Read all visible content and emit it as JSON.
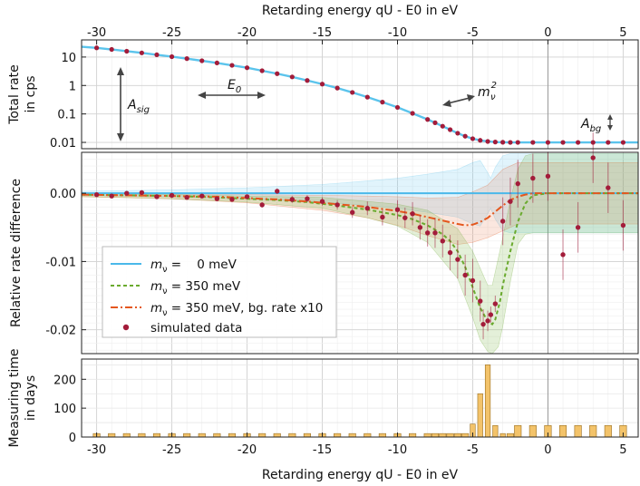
{
  "chart_data": [
    {
      "panel": "total-rate",
      "type": "line",
      "top_xlabel": "Retarding energy qU - E0 in eV",
      "ylabel": [
        "Total rate",
        "in cps"
      ],
      "yscale": "log",
      "ylim": [
        0.006,
        40
      ],
      "xlim": [
        -31,
        6
      ],
      "yticks": [
        "10",
        "1",
        "0.1",
        "0.01"
      ],
      "ytick_values": [
        10,
        1,
        0.1,
        0.01
      ],
      "xticks": [
        "-30",
        "-25",
        "-20",
        "-15",
        "-10",
        "-5",
        "0",
        "5"
      ],
      "xtick_values": [
        -30,
        -25,
        -20,
        -15,
        -10,
        -5,
        0,
        5
      ],
      "annotations": {
        "a_sig": {
          "main": "A",
          "sub": "sig"
        },
        "e0": {
          "main": "E",
          "sub": "0"
        },
        "m_nu_sq": {
          "main": "m",
          "sub": "ν",
          "sup": "2"
        },
        "a_bg": {
          "main": "A",
          "sub": "bg"
        }
      },
      "line_color": "#5bc4ec",
      "point_color": "#a31c3a",
      "x": [
        -31,
        -30,
        -29,
        -28,
        -27,
        -26,
        -25,
        -24,
        -23,
        -22,
        -21,
        -20,
        -19,
        -18,
        -17,
        -16,
        -15,
        -14,
        -13,
        -12,
        -11,
        -10,
        -9,
        -8,
        -7.5,
        -7,
        -6.5,
        -6,
        -5.5,
        -5,
        -4.5,
        -4,
        -3.5,
        -3,
        -2.5,
        -2,
        -1.5,
        -1,
        0,
        1,
        2,
        3,
        4,
        5,
        6
      ],
      "y": [
        23,
        21,
        18.5,
        16,
        14,
        12,
        10.3,
        8.8,
        7.4,
        6.2,
        5.1,
        4.2,
        3.3,
        2.6,
        2.0,
        1.5,
        1.12,
        0.81,
        0.57,
        0.39,
        0.26,
        0.17,
        0.105,
        0.064,
        0.049,
        0.037,
        0.028,
        0.021,
        0.0165,
        0.0135,
        0.0118,
        0.0108,
        0.0103,
        0.0101,
        0.01,
        0.01,
        0.01,
        0.01,
        0.01,
        0.01,
        0.01,
        0.01,
        0.01,
        0.01,
        0.01
      ],
      "points_x": [
        -30,
        -29,
        -28,
        -27,
        -26,
        -25,
        -24,
        -23,
        -22,
        -21,
        -20,
        -19,
        -18,
        -17,
        -16,
        -15,
        -14,
        -13,
        -12,
        -11,
        -10,
        -9,
        -8,
        -7.5,
        -7,
        -6.5,
        -6,
        -5.5,
        -5,
        -4.5,
        -4,
        -3.5,
        -3,
        -2.5,
        -2,
        -1,
        0,
        1,
        2,
        3,
        4,
        5
      ],
      "points_y": [
        21,
        18.5,
        16,
        14,
        12,
        10.3,
        8.8,
        7.4,
        6.2,
        5.1,
        4.2,
        3.3,
        2.6,
        2.0,
        1.5,
        1.12,
        0.81,
        0.57,
        0.39,
        0.26,
        0.17,
        0.105,
        0.064,
        0.049,
        0.037,
        0.028,
        0.021,
        0.0165,
        0.0135,
        0.0118,
        0.0108,
        0.0103,
        0.0101,
        0.01,
        0.01,
        0.01,
        0.01,
        0.01,
        0.01,
        0.01,
        0.01,
        0.01
      ]
    },
    {
      "panel": "relative-difference",
      "type": "line",
      "ylabel": [
        "Relative rate difference"
      ],
      "ylim": [
        -0.0235,
        0.006
      ],
      "xlim": [
        -31,
        6
      ],
      "yticks": [
        "0.00",
        "-0.01",
        "-0.02"
      ],
      "ytick_values": [
        0,
        -0.01,
        -0.02
      ],
      "legend_position": "lower-left",
      "series": [
        {
          "name": "mν =    0 meV",
          "label_main": "m",
          "label_sub": "ν",
          "label_rest": " =    0 meV",
          "color": "#4ab8ea",
          "style": "solid",
          "x": [
            -31,
            6
          ],
          "y": [
            0,
            0
          ]
        },
        {
          "name": "mν = 350 meV",
          "label_main": "m",
          "label_sub": "ν",
          "label_rest": " = 350 meV",
          "color": "#6aaa2e",
          "style": "dashed",
          "x": [
            -31,
            -28,
            -25,
            -22,
            -20,
            -18,
            -16,
            -14,
            -12,
            -10,
            -9,
            -8,
            -7,
            -6.5,
            -6,
            -5.5,
            -5,
            -4.5,
            -4,
            -3.7,
            -3.5,
            -3.2,
            -3,
            -2.5,
            -2,
            -1.5,
            -1,
            0,
            6
          ],
          "y": [
            -0.0002,
            -0.0003,
            -0.0004,
            -0.0006,
            -0.0008,
            -0.001,
            -0.0013,
            -0.0018,
            -0.0024,
            -0.0032,
            -0.0038,
            -0.0047,
            -0.006,
            -0.007,
            -0.0085,
            -0.0108,
            -0.0138,
            -0.0168,
            -0.0188,
            -0.0192,
            -0.0185,
            -0.016,
            -0.0135,
            -0.0085,
            -0.0042,
            -0.0015,
            -0.0003,
            0,
            0
          ]
        },
        {
          "name": "mν = 350 meV, bg. rate x10",
          "label_main": "m",
          "label_sub": "ν",
          "label_rest": " = 350 meV, bg. rate x10",
          "color": "#e4571e",
          "style": "dashdot",
          "x": [
            -31,
            -28,
            -25,
            -22,
            -20,
            -18,
            -16,
            -14,
            -12,
            -10,
            -9,
            -8,
            -7,
            -6,
            -5.5,
            -5,
            -4.5,
            -4,
            -3.5,
            -3,
            -2.5,
            -2,
            -1.5,
            -1,
            0,
            6
          ],
          "y": [
            -0.0002,
            -0.0003,
            -0.0004,
            -0.0005,
            -0.0007,
            -0.0009,
            -0.0012,
            -0.0016,
            -0.002,
            -0.0026,
            -0.003,
            -0.0035,
            -0.004,
            -0.0045,
            -0.0047,
            -0.0046,
            -0.0042,
            -0.0036,
            -0.0027,
            -0.0018,
            -0.001,
            -0.0005,
            -0.0002,
            0,
            0,
            0
          ]
        },
        {
          "name": "simulated data",
          "color": "#a31c3a",
          "style": "points",
          "x": [
            -30,
            -29,
            -28,
            -27,
            -26,
            -25,
            -24,
            -23,
            -22,
            -21,
            -20,
            -19,
            -18,
            -17,
            -16,
            -15,
            -14,
            -13,
            -12,
            -11,
            -10,
            -9.5,
            -9,
            -8.5,
            -8,
            -7.5,
            -7,
            -6.5,
            -6,
            -5.5,
            -5,
            -4.5,
            -4.3,
            -4,
            -3.8,
            -3.5,
            -3,
            -2.5,
            -2,
            -1,
            0,
            1,
            2,
            3,
            4,
            5
          ],
          "y": [
            -0.0002,
            -0.0004,
            0.0,
            0.0001,
            -0.0005,
            -0.0003,
            -0.0006,
            -0.0004,
            -0.0008,
            -0.0009,
            -0.0005,
            -0.0017,
            0.0003,
            -0.0009,
            -0.0008,
            -0.0012,
            -0.0017,
            -0.0028,
            -0.0022,
            -0.0035,
            -0.0024,
            -0.0036,
            -0.003,
            -0.005,
            -0.0058,
            -0.0058,
            -0.007,
            -0.0087,
            -0.0097,
            -0.012,
            -0.0128,
            -0.0158,
            -0.0192,
            -0.0187,
            -0.0178,
            -0.0162,
            -0.0041,
            -0.0012,
            0.0014,
            0.0022,
            0.0025,
            -0.009,
            -0.005,
            0.0052,
            0.0008,
            -0.0047
          ],
          "err": [
            0.0002,
            0.0002,
            0.0002,
            0.0002,
            0.0002,
            0.0002,
            0.0002,
            0.0003,
            0.0003,
            0.0003,
            0.0003,
            0.0004,
            0.0004,
            0.0005,
            0.0005,
            0.0006,
            0.0007,
            0.0008,
            0.001,
            0.0012,
            0.0014,
            0.0015,
            0.0017,
            0.0018,
            0.002,
            0.0022,
            0.0024,
            0.0026,
            0.0028,
            0.003,
            0.0032,
            0.003,
            0.0022,
            0.0015,
            0.0012,
            0.0012,
            0.0035,
            0.0035,
            0.0035,
            0.0036,
            0.0036,
            0.0037,
            0.0037,
            0.0037,
            0.0037,
            0.0037
          ]
        }
      ],
      "bands": [
        {
          "color": "#5bc4ec",
          "opacity": 0.18,
          "x": [
            -31,
            -25,
            -20,
            -15,
            -12,
            -10,
            -8,
            -6,
            -5,
            -4.5,
            -4,
            -3.8,
            -3.5,
            -3,
            -2.5,
            -2,
            6
          ],
          "upper": [
            0.0003,
            0.0005,
            0.0008,
            0.0013,
            0.0018,
            0.0022,
            0.0028,
            0.0035,
            0.0045,
            0.0048,
            0.003,
            0.0022,
            0.0038,
            0.0055,
            0.0058,
            0.0058,
            0.0058
          ],
          "lower": [
            -0.0003,
            -0.0005,
            -0.0008,
            -0.0013,
            -0.0018,
            -0.0022,
            -0.0028,
            -0.0035,
            -0.0045,
            -0.0048,
            -0.003,
            -0.0022,
            -0.0038,
            -0.0055,
            -0.0058,
            -0.0058,
            -0.0058
          ]
        },
        {
          "color": "#e4571e",
          "opacity": 0.14,
          "x": [
            -31,
            -25,
            -20,
            -15,
            -12,
            -10,
            -8,
            -6,
            -5,
            -4,
            -3,
            -2,
            -1,
            6
          ],
          "upper": [
            0.0,
            -0.0001,
            -0.0002,
            -0.0003,
            -0.0004,
            -0.0005,
            -0.0007,
            -0.0006,
            0.0002,
            0.0012,
            0.0035,
            0.0045,
            0.0045,
            0.0045
          ],
          "lower": [
            -0.0005,
            -0.0008,
            -0.0014,
            -0.0025,
            -0.0036,
            -0.0047,
            -0.0062,
            -0.0075,
            -0.0072,
            -0.0065,
            -0.0055,
            -0.0045,
            -0.0045,
            -0.0045
          ]
        },
        {
          "color": "#6aaa2e",
          "opacity": 0.18,
          "x": [
            -31,
            -25,
            -20,
            -15,
            -12,
            -10,
            -8,
            -6,
            -5,
            -4.5,
            -4,
            -3.7,
            -3.3,
            -3,
            -2.5,
            -2,
            -1.5,
            -1,
            6
          ],
          "upper": [
            0.0,
            -0.0002,
            -0.0004,
            -0.0006,
            -0.0012,
            -0.0016,
            -0.0025,
            -0.0052,
            -0.0085,
            -0.011,
            -0.0135,
            -0.0135,
            -0.0095,
            -0.0065,
            -0.001,
            0.0035,
            0.0055,
            0.0058,
            0.0058
          ],
          "lower": [
            -0.0005,
            -0.0008,
            -0.0013,
            -0.0022,
            -0.0036,
            -0.0048,
            -0.0072,
            -0.0125,
            -0.0182,
            -0.0215,
            -0.0232,
            -0.0235,
            -0.0225,
            -0.0195,
            -0.013,
            -0.0075,
            -0.006,
            -0.0058,
            -0.0058
          ]
        }
      ]
    },
    {
      "panel": "measuring-time",
      "type": "bar",
      "ylabel": [
        "Measuring time",
        "in days"
      ],
      "xlabel": "Retarding energy qU - E0 in eV",
      "ylim": [
        0,
        270
      ],
      "xlim": [
        -31,
        6
      ],
      "yticks": [
        "200",
        "100",
        "0"
      ],
      "ytick_values": [
        200,
        100,
        0
      ],
      "xticks": [
        "-30",
        "-25",
        "-20",
        "-15",
        "-10",
        "-5",
        "0",
        "5"
      ],
      "xtick_values": [
        -30,
        -25,
        -20,
        -15,
        -10,
        -5,
        0,
        5
      ],
      "bar_color": "#f3c36a",
      "bar_edge": "#9a6e20",
      "x": [
        -30,
        -29,
        -28,
        -27,
        -26,
        -25,
        -24,
        -23,
        -22,
        -21,
        -20,
        -19,
        -18,
        -17,
        -16,
        -15,
        -14,
        -13,
        -12,
        -11,
        -10,
        -9,
        -8,
        -7.5,
        -7,
        -6.5,
        -6,
        -5.5,
        -5,
        -4.5,
        -4,
        -3.5,
        -3,
        -2.5,
        -2,
        -1,
        0,
        1,
        2,
        3,
        4,
        5
      ],
      "values": [
        12,
        12,
        12,
        12,
        12,
        12,
        12,
        12,
        12,
        12,
        12,
        12,
        12,
        12,
        12,
        12,
        12,
        12,
        12,
        12,
        12,
        12,
        12,
        12,
        12,
        12,
        12,
        12,
        45,
        150,
        250,
        40,
        12,
        12,
        40,
        40,
        40,
        40,
        40,
        40,
        40,
        40
      ]
    }
  ]
}
